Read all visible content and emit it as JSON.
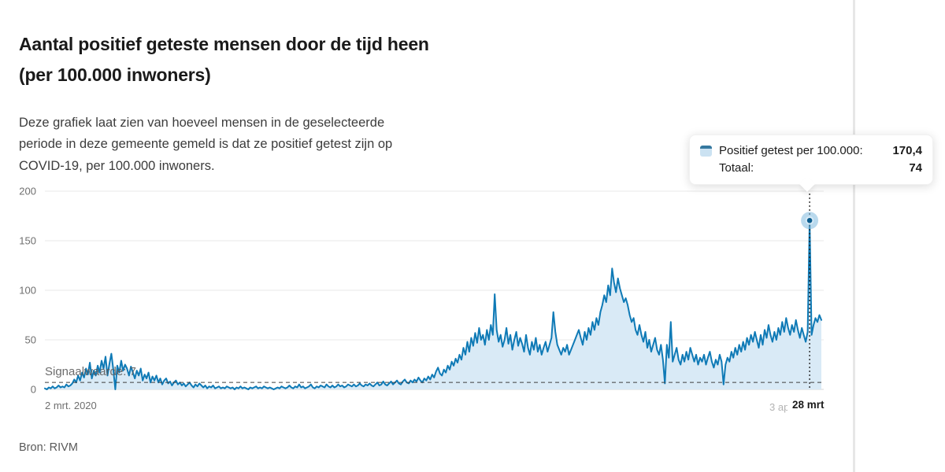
{
  "header": {
    "title": "Aantal positief geteste mensen door de tijd heen (per 100.000 inwoners)",
    "description": "Deze grafiek laat zien van hoeveel mensen in de geselecteerde periode in deze gemeente gemeld is dat ze positief getest zijn op COVID-19, per 100.000 inwoners."
  },
  "tooltip": {
    "row1_label": "Positief getest per 100.000:",
    "row1_value": "170,4",
    "row2_label": "Totaal:",
    "row2_value": "74"
  },
  "source": {
    "label": "Bron: RIVM"
  },
  "chart_data": {
    "type": "area",
    "title": "Aantal positief geteste mensen door de tijd heen (per 100.000 inwoners)",
    "xlabel": "",
    "ylabel": "",
    "ylim": [
      0,
      200
    ],
    "y_ticks": [
      0,
      50,
      100,
      150,
      200
    ],
    "grid": true,
    "x_start_label": "2 mrt. 2020",
    "x_end_label": "3 apr.",
    "hovered_x_label": "28 mrt",
    "signal_value": 7,
    "signal_value_label": "Signaalwaarde: 7",
    "hover_point": {
      "index": 391,
      "value": 170.4,
      "total": 74,
      "date_label": "28 mrt"
    },
    "series": [
      {
        "name": "Positief getest per 100.000",
        "values": [
          1,
          0,
          2,
          1,
          3,
          1,
          2,
          4,
          2,
          3,
          2,
          5,
          3,
          4,
          6,
          10,
          7,
          14,
          9,
          17,
          12,
          21,
          15,
          27,
          11,
          19,
          14,
          24,
          17,
          29,
          21,
          33,
          14,
          26,
          36,
          20,
          0,
          24,
          17,
          29,
          19,
          25,
          21,
          14,
          23,
          17,
          11,
          19,
          14,
          21,
          9,
          15,
          11,
          17,
          7,
          13,
          9,
          14,
          7,
          11,
          5,
          9,
          11,
          6,
          8,
          4,
          7,
          9,
          5,
          7,
          4,
          6,
          3,
          5,
          7,
          4,
          2,
          5,
          3,
          6,
          4,
          2,
          4,
          1,
          3,
          2,
          4,
          1,
          2,
          3,
          1,
          2,
          1,
          3,
          2,
          1,
          2,
          0,
          2,
          1,
          3,
          1,
          2,
          1,
          0,
          2,
          1,
          2,
          3,
          1,
          2,
          1,
          3,
          2,
          1,
          2,
          1,
          0,
          1,
          2,
          1,
          3,
          2,
          1,
          2,
          4,
          2,
          1,
          3,
          2,
          5,
          2,
          3,
          1,
          2,
          3,
          5,
          2,
          1,
          3,
          2,
          4,
          3,
          2,
          5,
          3,
          2,
          4,
          2,
          3,
          5,
          3,
          4,
          2,
          3,
          5,
          4,
          3,
          5,
          3,
          4,
          6,
          4,
          3,
          5,
          4,
          6,
          4,
          3,
          5,
          7,
          4,
          5,
          8,
          5,
          4,
          6,
          8,
          5,
          7,
          9,
          6,
          5,
          8,
          10,
          7,
          6,
          9,
          7,
          10,
          8,
          12,
          9,
          7,
          11,
          9,
          13,
          10,
          15,
          12,
          18,
          22,
          16,
          14,
          20,
          17,
          24,
          20,
          28,
          24,
          31,
          27,
          35,
          30,
          42,
          35,
          48,
          38,
          52,
          44,
          57,
          47,
          62,
          50,
          55,
          45,
          60,
          50,
          65,
          55,
          96,
          60,
          48,
          55,
          43,
          50,
          62,
          46,
          55,
          40,
          50,
          58,
          44,
          52,
          46,
          38,
          55,
          42,
          35,
          48,
          40,
          52,
          38,
          45,
          35,
          42,
          48,
          38,
          45,
          52,
          78,
          58,
          45,
          40,
          35,
          42,
          38,
          45,
          35,
          40,
          45,
          50,
          55,
          60,
          52,
          45,
          58,
          50,
          62,
          55,
          68,
          60,
          72,
          65,
          78,
          85,
          95,
          88,
          105,
          95,
          122,
          108,
          98,
          112,
          102,
          95,
          88,
          92,
          85,
          75,
          68,
          72,
          60,
          55,
          65,
          55,
          48,
          58,
          42,
          50,
          38,
          45,
          52,
          40,
          35,
          45,
          30,
          6,
          45,
          32,
          68,
          28,
          35,
          42,
          30,
          25,
          35,
          28,
          38,
          30,
          42,
          35,
          28,
          35,
          25,
          32,
          28,
          35,
          25,
          32,
          38,
          28,
          22,
          30,
          25,
          35,
          28,
          5,
          25,
          32,
          28,
          38,
          32,
          42,
          35,
          45,
          38,
          48,
          40,
          52,
          45,
          55,
          48,
          58,
          50,
          42,
          55,
          45,
          60,
          52,
          65,
          55,
          48,
          58,
          50,
          62,
          55,
          68,
          58,
          72,
          62,
          55,
          65,
          58,
          70,
          60,
          52,
          62,
          55,
          48,
          58,
          170.4,
          55,
          65,
          72,
          68,
          75,
          70
        ]
      }
    ],
    "colors": {
      "line": "#0f7ab6",
      "fill": "#d9eaf6",
      "marker": "#0b5c8d",
      "marker_halo": "#7fb9de",
      "grid": "#e8e8e8",
      "baseline": "#d7d7d7",
      "signal_line": "#3f3f3f",
      "axis_text": "#6f6f6f"
    }
  }
}
